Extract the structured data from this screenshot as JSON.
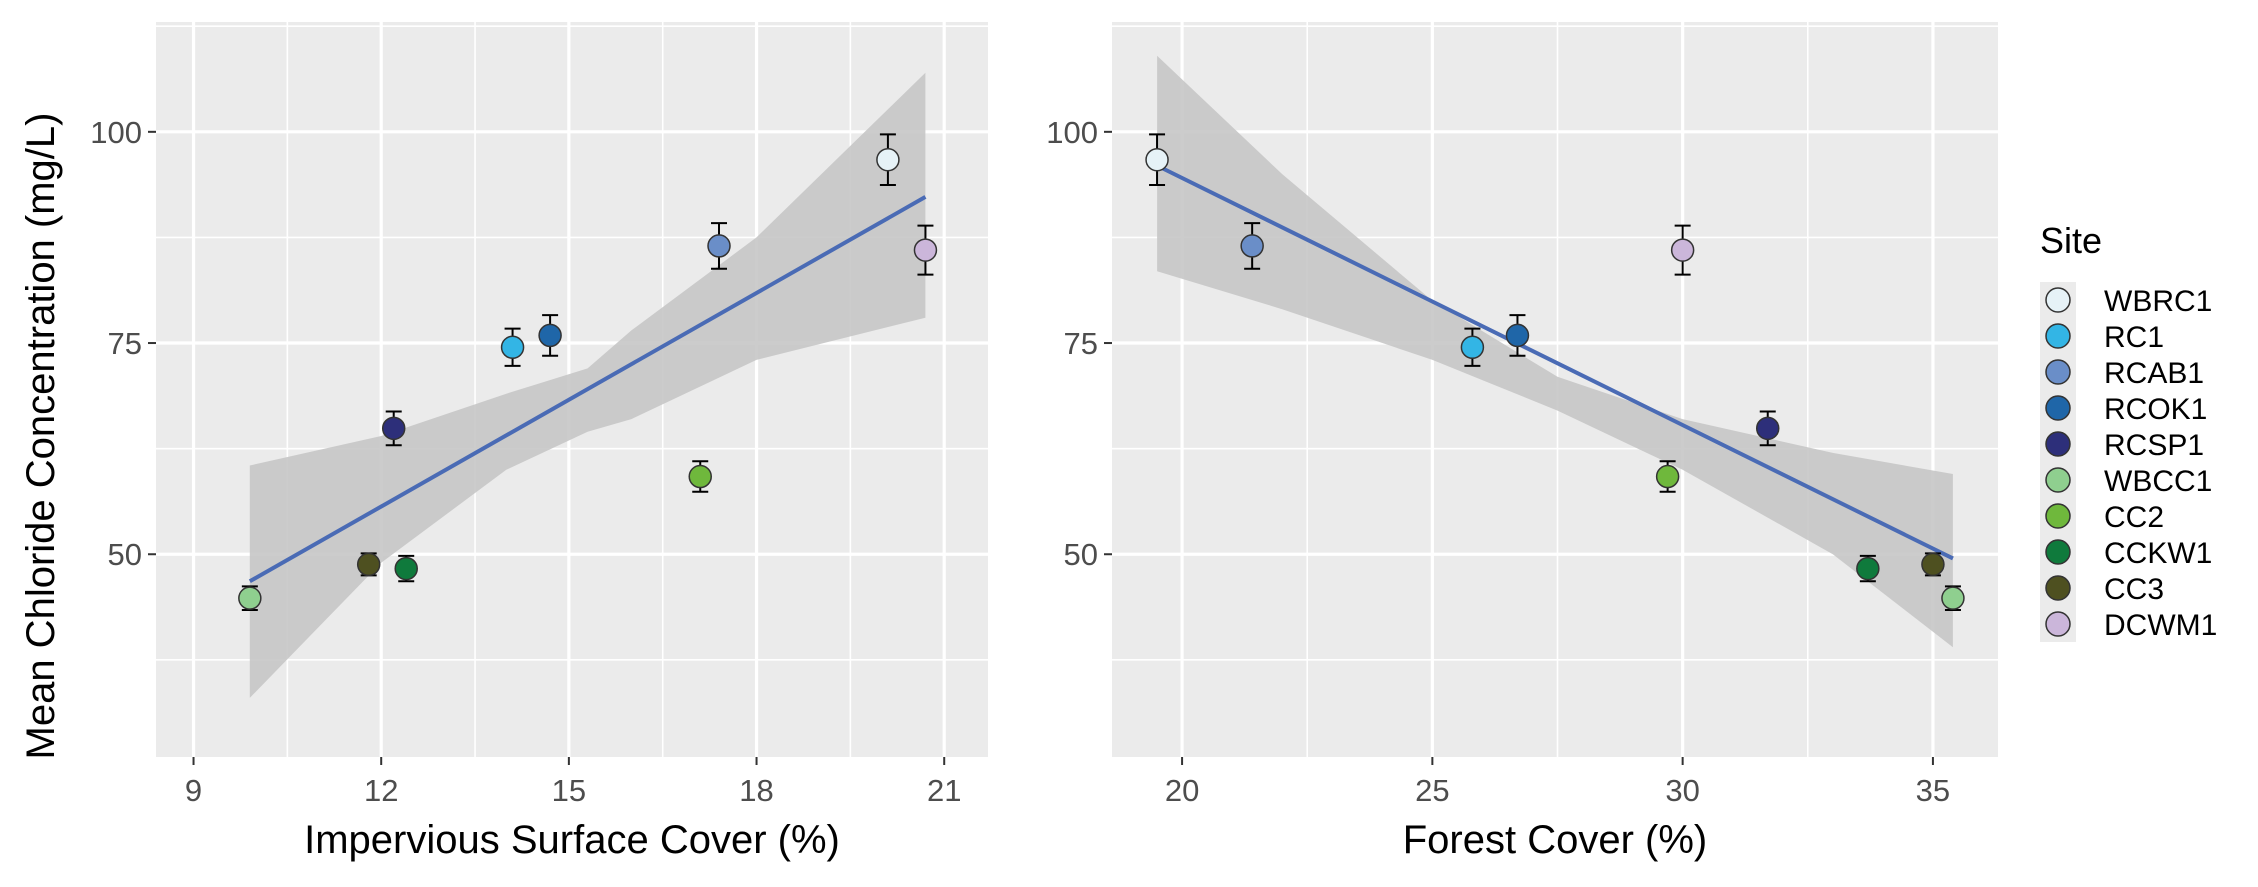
{
  "chart_data": [
    {
      "type": "scatter",
      "xlabel": "Impervious Surface Cover (%)",
      "ylabel": "Mean Chloride Concentration (mg/L)",
      "xlim": [
        8.4,
        21.7
      ],
      "ylim": [
        26,
        113
      ],
      "xticks": [
        9,
        12,
        15,
        18,
        21
      ],
      "yticks": [
        50,
        75,
        100
      ],
      "grid": true,
      "points": [
        {
          "site": "WBRC1",
          "x": 20.1,
          "y": 96.7,
          "err": 3.0
        },
        {
          "site": "RC1",
          "x": 14.1,
          "y": 74.5,
          "err": 2.2
        },
        {
          "site": "RCAB1",
          "x": 17.4,
          "y": 86.5,
          "err": 2.7
        },
        {
          "site": "RCOK1",
          "x": 14.7,
          "y": 75.9,
          "err": 2.4
        },
        {
          "site": "RCSP1",
          "x": 12.2,
          "y": 64.9,
          "err": 2.0
        },
        {
          "site": "WBCC1",
          "x": 9.9,
          "y": 44.8,
          "err": 1.4
        },
        {
          "site": "CC2",
          "x": 17.1,
          "y": 59.2,
          "err": 1.8
        },
        {
          "site": "CCKW1",
          "x": 12.4,
          "y": 48.3,
          "err": 1.5
        },
        {
          "site": "CC3",
          "x": 11.8,
          "y": 48.8,
          "err": 1.3
        },
        {
          "site": "DCWM1",
          "x": 20.7,
          "y": 86.0,
          "err": 2.9
        }
      ],
      "fit": {
        "x": [
          9.9,
          20.7
        ],
        "y": [
          46.8,
          92.3
        ]
      },
      "ci": {
        "x": [
          9.9,
          12.0,
          14.0,
          15.3,
          16.0,
          18.0,
          20.7
        ],
        "lower": [
          33.0,
          49.0,
          60.0,
          64.5,
          66.0,
          73.0,
          78.0
        ],
        "upper": [
          60.5,
          64.0,
          69.0,
          72.0,
          76.5,
          87.5,
          107.0
        ]
      }
    },
    {
      "type": "scatter",
      "xlabel": "Forest Cover (%)",
      "ylabel": "",
      "xlim": [
        18.6,
        36.3
      ],
      "ylim": [
        26,
        113
      ],
      "xticks": [
        20,
        25,
        30,
        35
      ],
      "yticks": [
        50,
        75,
        100
      ],
      "grid": true,
      "points": [
        {
          "site": "WBRC1",
          "x": 19.5,
          "y": 96.7,
          "err": 3.0
        },
        {
          "site": "RC1",
          "x": 25.8,
          "y": 74.5,
          "err": 2.2
        },
        {
          "site": "RCAB1",
          "x": 21.4,
          "y": 86.5,
          "err": 2.7
        },
        {
          "site": "RCOK1",
          "x": 26.7,
          "y": 75.9,
          "err": 2.4
        },
        {
          "site": "RCSP1",
          "x": 31.7,
          "y": 64.9,
          "err": 2.0
        },
        {
          "site": "WBCC1",
          "x": 35.4,
          "y": 44.8,
          "err": 1.4
        },
        {
          "site": "CC2",
          "x": 29.7,
          "y": 59.2,
          "err": 1.8
        },
        {
          "site": "CCKW1",
          "x": 33.7,
          "y": 48.3,
          "err": 1.5
        },
        {
          "site": "CC3",
          "x": 35.0,
          "y": 48.8,
          "err": 1.3
        },
        {
          "site": "DCWM1",
          "x": 30.0,
          "y": 86.0,
          "err": 2.9
        }
      ],
      "fit": {
        "x": [
          19.5,
          35.4
        ],
        "y": [
          96.0,
          49.5
        ]
      },
      "ci": {
        "x": [
          19.5,
          22.0,
          25.0,
          27.5,
          30.0,
          33.0,
          35.4
        ],
        "lower": [
          83.5,
          79.0,
          73.0,
          67.0,
          60.0,
          50.0,
          39.0
        ],
        "upper": [
          109.0,
          95.0,
          80.0,
          71.0,
          66.0,
          62.0,
          59.5
        ]
      }
    }
  ],
  "legend": {
    "title": "Site",
    "placement": "right",
    "items": [
      {
        "label": "WBRC1",
        "color": "#e6f2f7"
      },
      {
        "label": "RC1",
        "color": "#33b5e5"
      },
      {
        "label": "RCAB1",
        "color": "#6a8ec8"
      },
      {
        "label": "RCOK1",
        "color": "#1f66a8"
      },
      {
        "label": "RCSP1",
        "color": "#2d2f7a"
      },
      {
        "label": "WBCC1",
        "color": "#8fcf8f"
      },
      {
        "label": "CC2",
        "color": "#6fb83c"
      },
      {
        "label": "CCKW1",
        "color": "#0f7a3c"
      },
      {
        "label": "CC3",
        "color": "#4e5020"
      },
      {
        "label": "DCWM1",
        "color": "#cbb6da"
      }
    ]
  },
  "colors": {
    "panel_bg": "#ebebeb",
    "grid": "#ffffff",
    "fit_line": "#4a6bb5",
    "ci_band": "#c7c7c7",
    "legend_bg": "#ebebeb"
  }
}
